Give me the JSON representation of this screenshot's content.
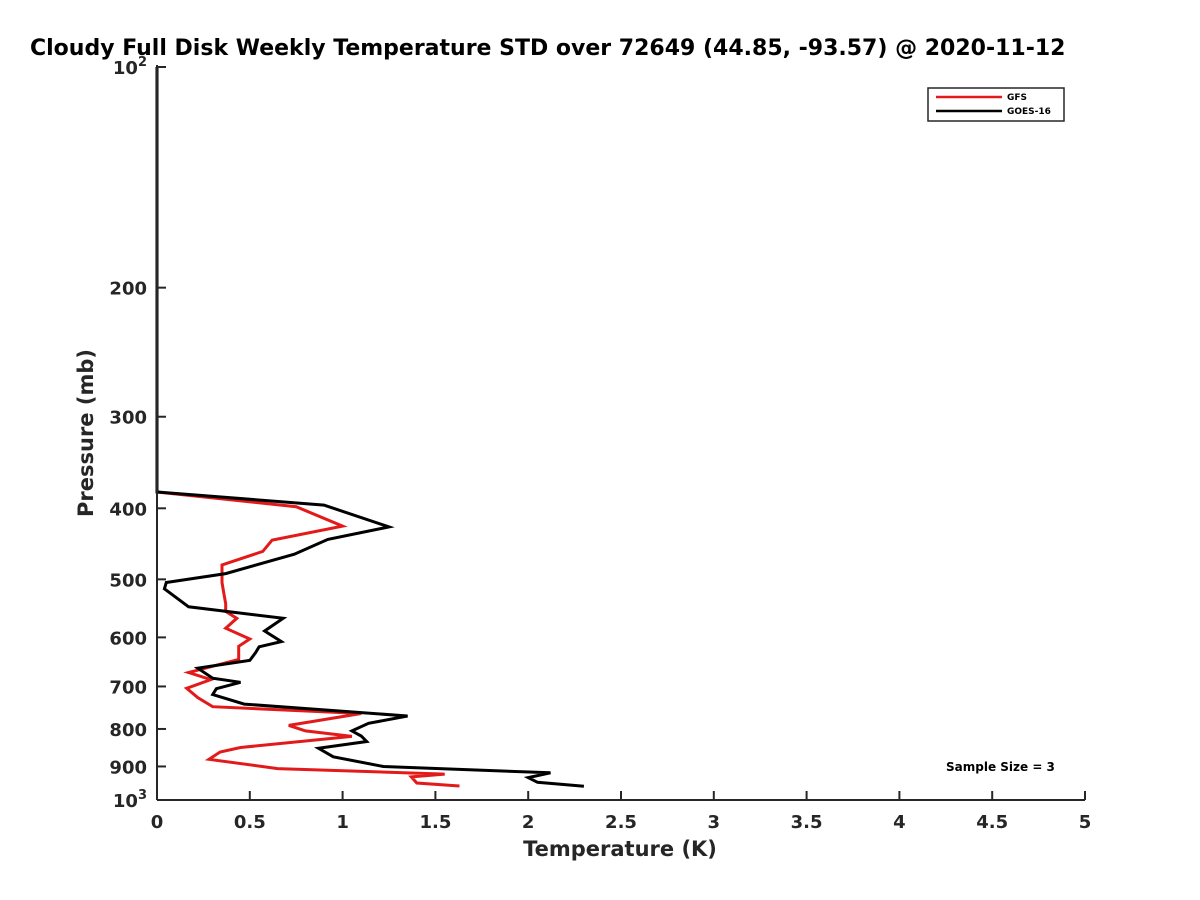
{
  "chart_data": {
    "type": "line",
    "title": "Cloudy Full Disk Weekly Temperature STD over 72649 (44.85, -93.57) @ 2020-11-12",
    "xlabel": "Temperature (K)",
    "ylabel": "Pressure (mb)",
    "xlim": [
      0,
      5
    ],
    "ylim": [
      100,
      1000
    ],
    "y_scale": "log",
    "y_reversed": true,
    "x_ticks": [
      0,
      0.5,
      1,
      1.5,
      2,
      2.5,
      3,
      3.5,
      4,
      4.5,
      5
    ],
    "x_tick_labels": [
      "0",
      "0.5",
      "1",
      "1.5",
      "2",
      "2.5",
      "3",
      "3.5",
      "4",
      "4.5",
      "5"
    ],
    "y_ticks": [
      100,
      200,
      300,
      400,
      500,
      600,
      700,
      800,
      900,
      1000
    ],
    "y_tick_labels": [
      "10^2",
      "200",
      "300",
      "400",
      "500",
      "600",
      "700",
      "800",
      "900",
      "10^3"
    ],
    "grid": false,
    "legend": {
      "position": "top-right",
      "entries": [
        "GFS",
        "GOES-16"
      ]
    },
    "annotations": [
      "Sample Size = 3"
    ],
    "series": [
      {
        "name": "GFS",
        "color": "#e31a1a",
        "points": [
          [
            0,
            100
          ],
          [
            0,
            200
          ],
          [
            0,
            300
          ],
          [
            0,
            380
          ],
          [
            0.75,
            398
          ],
          [
            1.0,
            423
          ],
          [
            0.62,
            442
          ],
          [
            0.57,
            458
          ],
          [
            0.35,
            478
          ],
          [
            0.35,
            505
          ],
          [
            0.36,
            522
          ],
          [
            0.37,
            540
          ],
          [
            0.37,
            553
          ],
          [
            0.43,
            565
          ],
          [
            0.37,
            583
          ],
          [
            0.5,
            603
          ],
          [
            0.44,
            617
          ],
          [
            0.44,
            643
          ],
          [
            0.17,
            670
          ],
          [
            0.29,
            685
          ],
          [
            0.16,
            704
          ],
          [
            0.22,
            725
          ],
          [
            0.3,
            746
          ],
          [
            1.1,
            762
          ],
          [
            0.71,
            791
          ],
          [
            0.8,
            805
          ],
          [
            1.05,
            819
          ],
          [
            0.45,
            848
          ],
          [
            0.34,
            860
          ],
          [
            0.28,
            880
          ],
          [
            0.65,
            906
          ],
          [
            1.55,
            922
          ],
          [
            1.37,
            930
          ],
          [
            1.4,
            948
          ],
          [
            1.63,
            957
          ]
        ]
      },
      {
        "name": "GOES-16",
        "color": "#000000",
        "points": [
          [
            0,
            100
          ],
          [
            0,
            200
          ],
          [
            0,
            300
          ],
          [
            0,
            380
          ],
          [
            0.9,
            396
          ],
          [
            1.25,
            424
          ],
          [
            0.92,
            441
          ],
          [
            0.74,
            462
          ],
          [
            0.37,
            491
          ],
          [
            0.05,
            505
          ],
          [
            0.04,
            515
          ],
          [
            0.17,
            545
          ],
          [
            0.68,
            565
          ],
          [
            0.58,
            588
          ],
          [
            0.67,
            608
          ],
          [
            0.55,
            618
          ],
          [
            0.53,
            630
          ],
          [
            0.5,
            645
          ],
          [
            0.22,
            661
          ],
          [
            0.3,
            682
          ],
          [
            0.45,
            691
          ],
          [
            0.32,
            705
          ],
          [
            0.3,
            718
          ],
          [
            0.47,
            740
          ],
          [
            1.35,
            768
          ],
          [
            1.14,
            786
          ],
          [
            1.05,
            805
          ],
          [
            1.1,
            818
          ],
          [
            1.13,
            832
          ],
          [
            0.87,
            850
          ],
          [
            0.95,
            873
          ],
          [
            1.22,
            900
          ],
          [
            2.12,
            918
          ],
          [
            2.0,
            932
          ],
          [
            2.05,
            946
          ],
          [
            2.3,
            958
          ]
        ]
      }
    ]
  }
}
